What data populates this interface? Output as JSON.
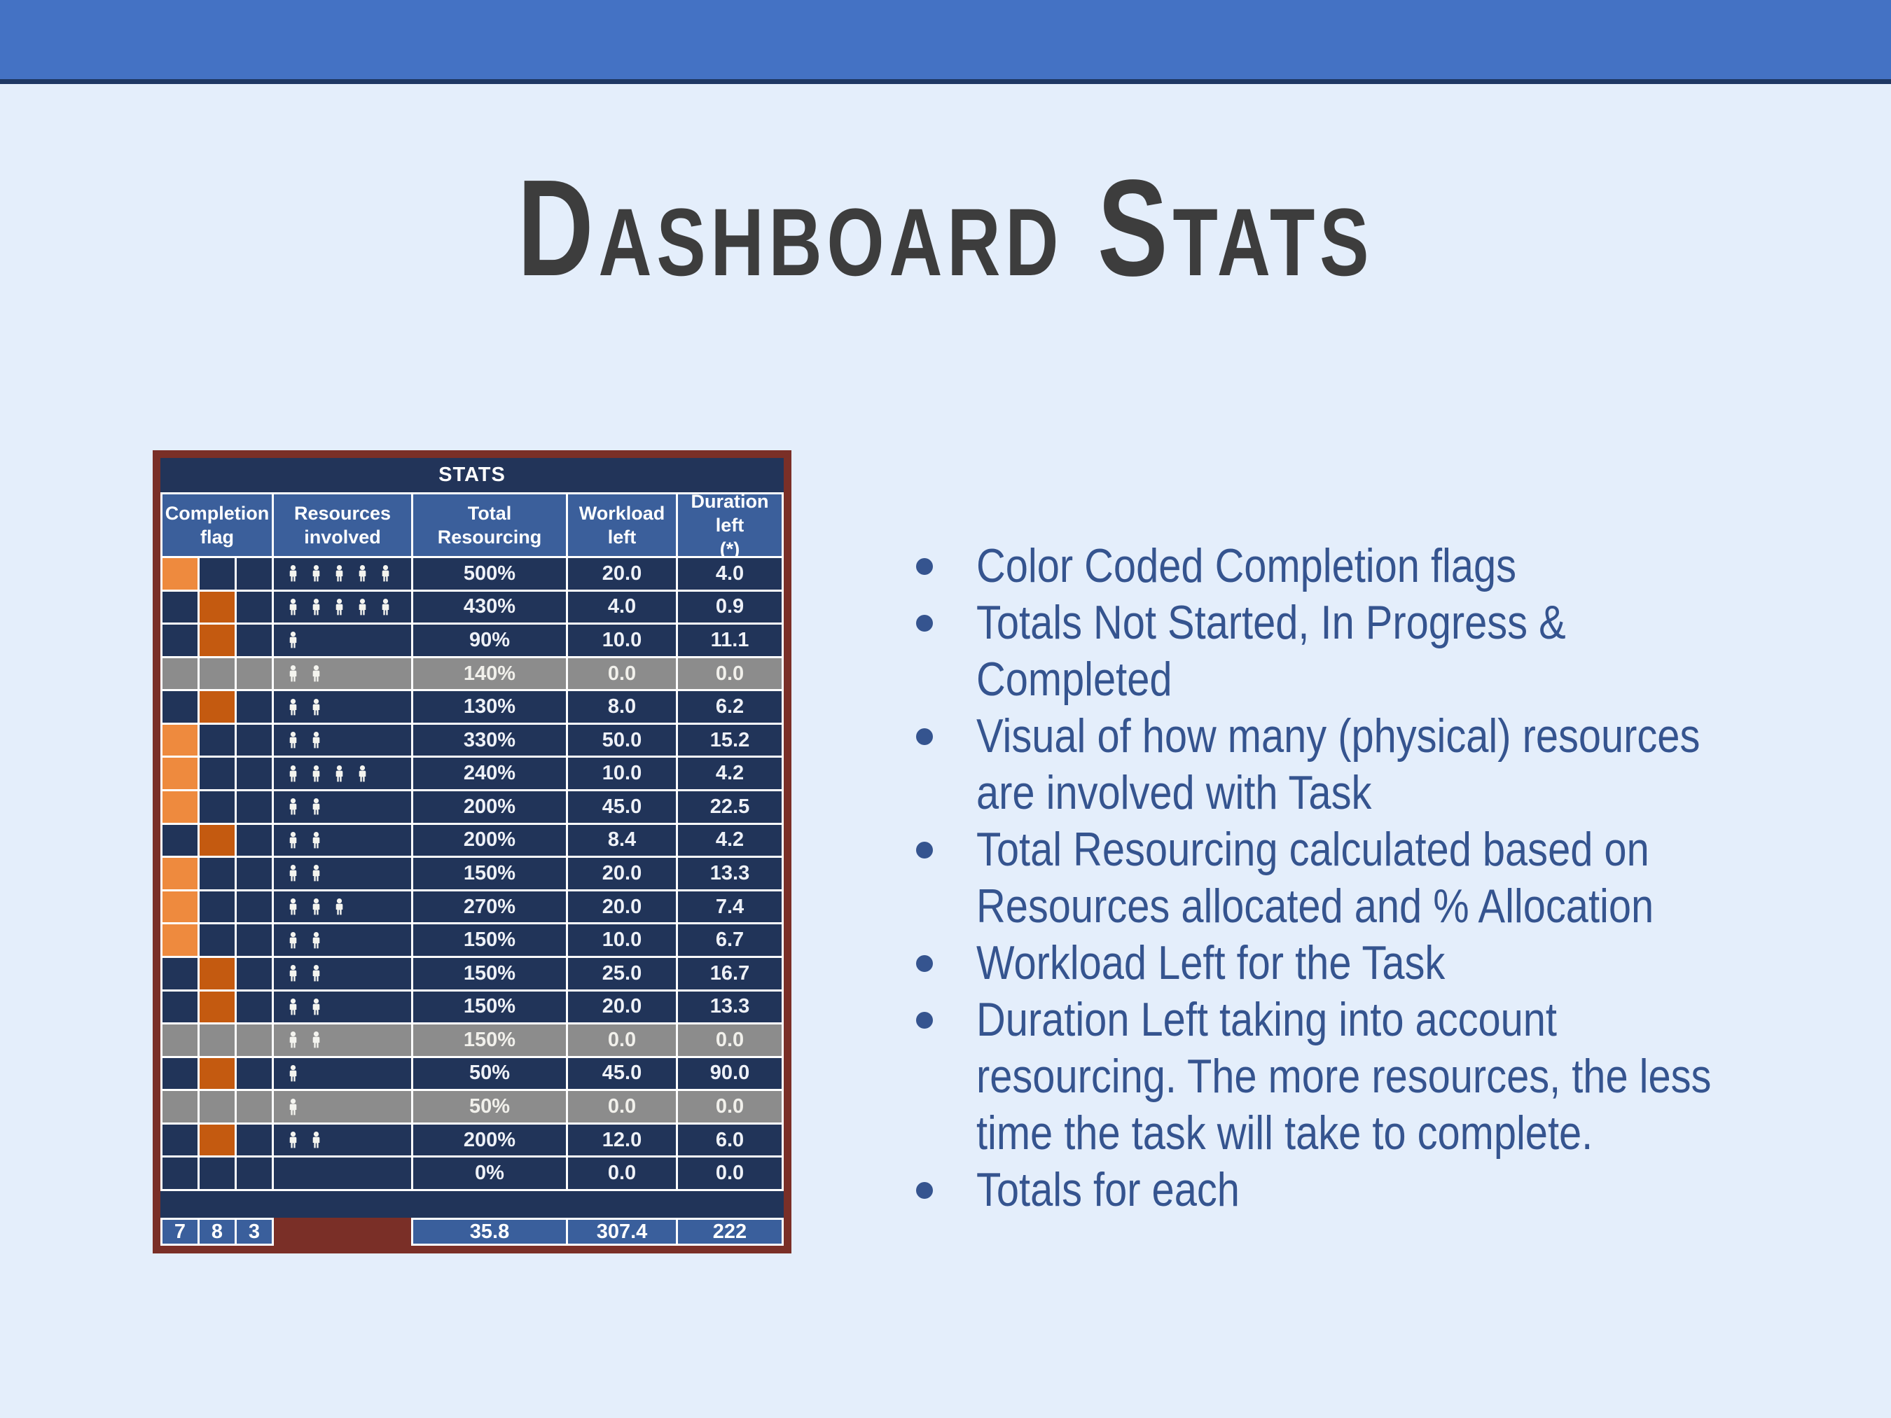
{
  "title": "Dashboard Stats",
  "colors": {
    "background": "#E4EEFB",
    "topbar": "#4472C4",
    "topbar_line": "#1F3864",
    "title_text": "#3D3D3D",
    "table_border": "#7A2F27",
    "stats_bar_bg": "#223459",
    "header_bg": "#3B5F9B",
    "row_bg": "#213459",
    "gray_row_bg": "#8C8C8C",
    "flag_not_started": "#EE8A3E",
    "flag_in_progress": "#C45A10",
    "totals_cell_bg": "#3A5F9C",
    "grid_line": "#FFFFFF",
    "table_text": "#EEF1F7",
    "bullet_text": "#35548F"
  },
  "table": {
    "title": "STATS",
    "columns": {
      "completion_flag": "Completion\nflag",
      "resources_involved": "Resources\ninvolved",
      "total_resourcing": "Total Resourcing",
      "workload_left": "Workload left",
      "duration_left": "Duration left\n(*)"
    },
    "rows": [
      {
        "flag": "not_started",
        "resources": 5,
        "total_resourcing": "500%",
        "workload_left": "20.0",
        "duration_left": "4.0"
      },
      {
        "flag": "in_progress",
        "resources": 5,
        "total_resourcing": "430%",
        "workload_left": "4.0",
        "duration_left": "0.9"
      },
      {
        "flag": "in_progress",
        "resources": 1,
        "total_resourcing": "90%",
        "workload_left": "10.0",
        "duration_left": "11.1"
      },
      {
        "flag": "completed",
        "resources": 2,
        "total_resourcing": "140%",
        "workload_left": "0.0",
        "duration_left": "0.0"
      },
      {
        "flag": "in_progress",
        "resources": 2,
        "total_resourcing": "130%",
        "workload_left": "8.0",
        "duration_left": "6.2"
      },
      {
        "flag": "not_started",
        "resources": 2,
        "total_resourcing": "330%",
        "workload_left": "50.0",
        "duration_left": "15.2"
      },
      {
        "flag": "not_started",
        "resources": 4,
        "total_resourcing": "240%",
        "workload_left": "10.0",
        "duration_left": "4.2"
      },
      {
        "flag": "not_started",
        "resources": 2,
        "total_resourcing": "200%",
        "workload_left": "45.0",
        "duration_left": "22.5"
      },
      {
        "flag": "in_progress",
        "resources": 2,
        "total_resourcing": "200%",
        "workload_left": "8.4",
        "duration_left": "4.2"
      },
      {
        "flag": "not_started",
        "resources": 2,
        "total_resourcing": "150%",
        "workload_left": "20.0",
        "duration_left": "13.3"
      },
      {
        "flag": "not_started",
        "resources": 3,
        "total_resourcing": "270%",
        "workload_left": "20.0",
        "duration_left": "7.4"
      },
      {
        "flag": "not_started",
        "resources": 2,
        "total_resourcing": "150%",
        "workload_left": "10.0",
        "duration_left": "6.7"
      },
      {
        "flag": "in_progress",
        "resources": 2,
        "total_resourcing": "150%",
        "workload_left": "25.0",
        "duration_left": "16.7"
      },
      {
        "flag": "in_progress",
        "resources": 2,
        "total_resourcing": "150%",
        "workload_left": "20.0",
        "duration_left": "13.3"
      },
      {
        "flag": "completed",
        "resources": 2,
        "total_resourcing": "150%",
        "workload_left": "0.0",
        "duration_left": "0.0"
      },
      {
        "flag": "in_progress",
        "resources": 1,
        "total_resourcing": "50%",
        "workload_left": "45.0",
        "duration_left": "90.0"
      },
      {
        "flag": "completed",
        "resources": 1,
        "total_resourcing": "50%",
        "workload_left": "0.0",
        "duration_left": "0.0"
      },
      {
        "flag": "in_progress",
        "resources": 2,
        "total_resourcing": "200%",
        "workload_left": "12.0",
        "duration_left": "6.0"
      },
      {
        "flag": "none",
        "resources": 0,
        "total_resourcing": "0%",
        "workload_left": "0.0",
        "duration_left": "0.0"
      }
    ],
    "totals": {
      "not_started": "7",
      "in_progress": "8",
      "completed": "3",
      "total_resourcing": "35.8",
      "workload_left": "307.4",
      "duration_left": "222"
    }
  },
  "bullets": [
    "Color Coded Completion flags",
    "Totals Not Started, In Progress &\nCompleted",
    "Visual of how many (physical) resources\nare involved with Task",
    "Total Resourcing calculated based on\nResources allocated and % Allocation",
    "Workload Left for the Task",
    "Duration Left taking into account\nresourcing. The more resources, the less\ntime the task will take to complete.",
    "Totals for each"
  ]
}
